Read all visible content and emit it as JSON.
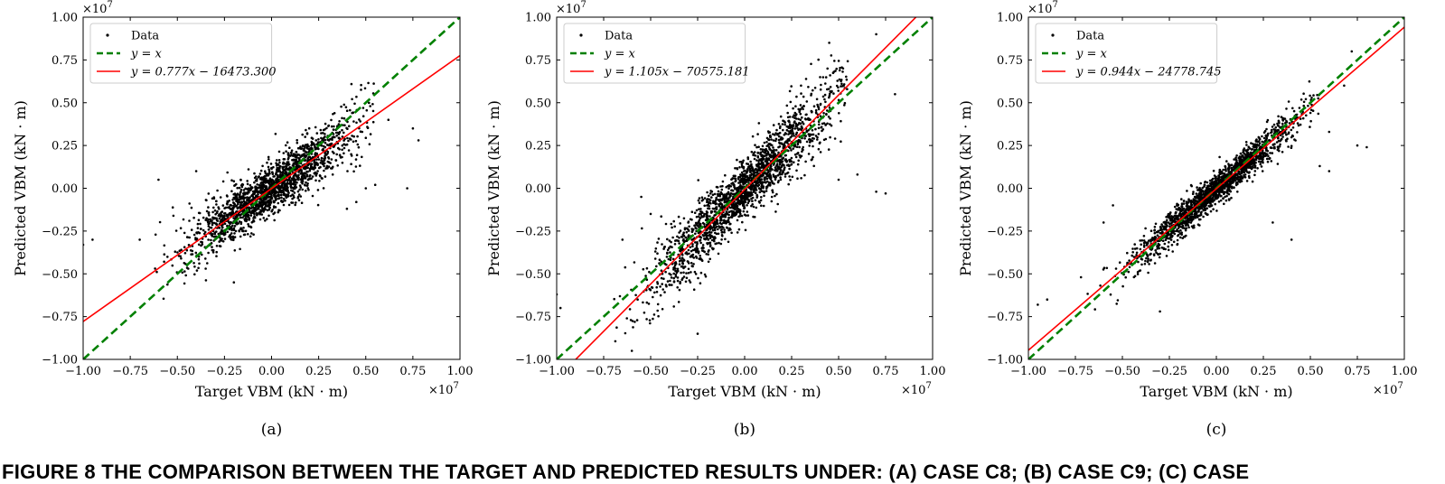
{
  "figure": {
    "caption": "FIGURE 8 THE COMPARISON BETWEEN THE TARGET AND PREDICTED RESULTS UNDER: (A) CASE C8; (B) CASE C9; (C) CASE"
  },
  "chart_data": [
    {
      "type": "scatter",
      "panel_label": "(a)",
      "xlabel": "Target VBM (kN · m)",
      "ylabel": "Predicted VBM (kN · m)",
      "x_offset_text": "×10^7",
      "y_offset_text": "×10^7",
      "xlim": [
        -1.0,
        1.0
      ],
      "ylim": [
        -1.0,
        1.0
      ],
      "xticks": [
        "−1.00",
        "−0.75",
        "−0.50",
        "−0.25",
        "0.00",
        "0.25",
        "0.50",
        "0.75",
        "1.00"
      ],
      "yticks": [
        "−1.00",
        "−0.75",
        "−0.50",
        "−0.25",
        "0.00",
        "0.25",
        "0.50",
        "0.75",
        "1.00"
      ],
      "legend_position": "top-left",
      "legend": [
        "Data",
        "y = x",
        "y = 0.777x − 16473.300"
      ],
      "fit": {
        "slope": 0.777,
        "intercept": -16473.3
      },
      "series": [
        {
          "name": "Data",
          "style": "points",
          "color": "#000000",
          "x_spread": 0.22,
          "noise": 0.11,
          "count": 1800,
          "outliers": [
            [
              -1.0,
              -0.33
            ],
            [
              -0.95,
              -0.3
            ],
            [
              -0.7,
              -0.3
            ],
            [
              0.5,
              0.0
            ],
            [
              0.55,
              0.02
            ],
            [
              0.72,
              0.0
            ],
            [
              0.75,
              0.35
            ],
            [
              0.78,
              0.28
            ],
            [
              0.62,
              0.4
            ],
            [
              0.45,
              -0.08
            ],
            [
              0.4,
              -0.12
            ],
            [
              -0.6,
              0.05
            ],
            [
              -0.4,
              0.1
            ],
            [
              -0.2,
              -0.55
            ],
            [
              0.2,
              0.35
            ]
          ]
        },
        {
          "name": "y = x",
          "style": "dashed-line",
          "color": "#008000"
        },
        {
          "name": "y = 0.777x − 16473.300",
          "style": "line",
          "color": "#ff0000"
        }
      ]
    },
    {
      "type": "scatter",
      "panel_label": "(b)",
      "xlabel": "Target VBM (kN · m)",
      "ylabel": "Predicted VBM (kN · m)",
      "x_offset_text": "×10^7",
      "y_offset_text": "×10^7",
      "xlim": [
        -1.0,
        1.0
      ],
      "ylim": [
        -1.0,
        1.0
      ],
      "xticks": [
        "−1.00",
        "−0.75",
        "−0.50",
        "−0.25",
        "0.00",
        "0.25",
        "0.50",
        "0.75",
        "1.00"
      ],
      "yticks": [
        "−1.00",
        "−0.75",
        "−0.50",
        "−0.25",
        "0.00",
        "0.25",
        "0.50",
        "0.75",
        "1.00"
      ],
      "legend_position": "top-left",
      "legend": [
        "Data",
        "y = x",
        "y = 1.105x − 70575.181"
      ],
      "fit": {
        "slope": 1.105,
        "intercept": -70575.181
      },
      "series": [
        {
          "name": "Data",
          "style": "points",
          "color": "#000000",
          "x_spread": 0.24,
          "noise": 0.13,
          "count": 1900,
          "outliers": [
            [
              -1.0,
              -0.62
            ],
            [
              -0.98,
              -0.7
            ],
            [
              -0.6,
              -0.95
            ],
            [
              -0.65,
              -0.3
            ],
            [
              -0.5,
              -0.15
            ],
            [
              -0.55,
              -0.05
            ],
            [
              0.7,
              -0.02
            ],
            [
              0.75,
              -0.03
            ],
            [
              0.6,
              0.08
            ],
            [
              0.5,
              0.05
            ],
            [
              0.8,
              0.55
            ],
            [
              0.7,
              0.9
            ],
            [
              -0.25,
              -0.85
            ],
            [
              0.3,
              0.6
            ],
            [
              0.45,
              0.85
            ]
          ]
        },
        {
          "name": "y = x",
          "style": "dashed-line",
          "color": "#008000"
        },
        {
          "name": "y = 1.105x − 70575.181",
          "style": "line",
          "color": "#ff0000"
        }
      ]
    },
    {
      "type": "scatter",
      "panel_label": "(c)",
      "xlabel": "Target VBM (kN · m)",
      "ylabel": "Predicted VBM (kN · m)",
      "x_offset_text": "×10^7",
      "y_offset_text": "×10^7",
      "xlim": [
        -1.0,
        1.0
      ],
      "ylim": [
        -1.0,
        1.0
      ],
      "xticks": [
        "−1.00",
        "−0.75",
        "−0.50",
        "−0.25",
        "0.00",
        "0.25",
        "0.50",
        "0.75",
        "1.00"
      ],
      "yticks": [
        "−1.00",
        "−0.75",
        "−0.50",
        "−0.25",
        "0.00",
        "0.25",
        "0.50",
        "0.75",
        "1.00"
      ],
      "legend_position": "top-left",
      "legend": [
        "Data",
        "y = x",
        "y = 0.944x − 24778.745"
      ],
      "fit": {
        "slope": 0.944,
        "intercept": -24778.745
      },
      "series": [
        {
          "name": "Data",
          "style": "points",
          "color": "#000000",
          "x_spread": 0.22,
          "noise": 0.07,
          "count": 1800,
          "outliers": [
            [
              -0.95,
              -0.68
            ],
            [
              -0.9,
              -0.65
            ],
            [
              -0.72,
              -0.52
            ],
            [
              -0.55,
              -0.1
            ],
            [
              -0.6,
              -0.2
            ],
            [
              0.6,
              0.1
            ],
            [
              0.75,
              0.25
            ],
            [
              0.8,
              0.24
            ],
            [
              0.55,
              0.13
            ],
            [
              0.6,
              0.33
            ],
            [
              0.68,
              0.6
            ],
            [
              0.72,
              0.8
            ],
            [
              -0.3,
              -0.72
            ],
            [
              0.3,
              -0.2
            ],
            [
              0.4,
              -0.3
            ]
          ]
        },
        {
          "name": "y = x",
          "style": "dashed-line",
          "color": "#008000"
        },
        {
          "name": "y = 0.944x − 24778.745",
          "style": "line",
          "color": "#ff0000"
        }
      ]
    }
  ]
}
